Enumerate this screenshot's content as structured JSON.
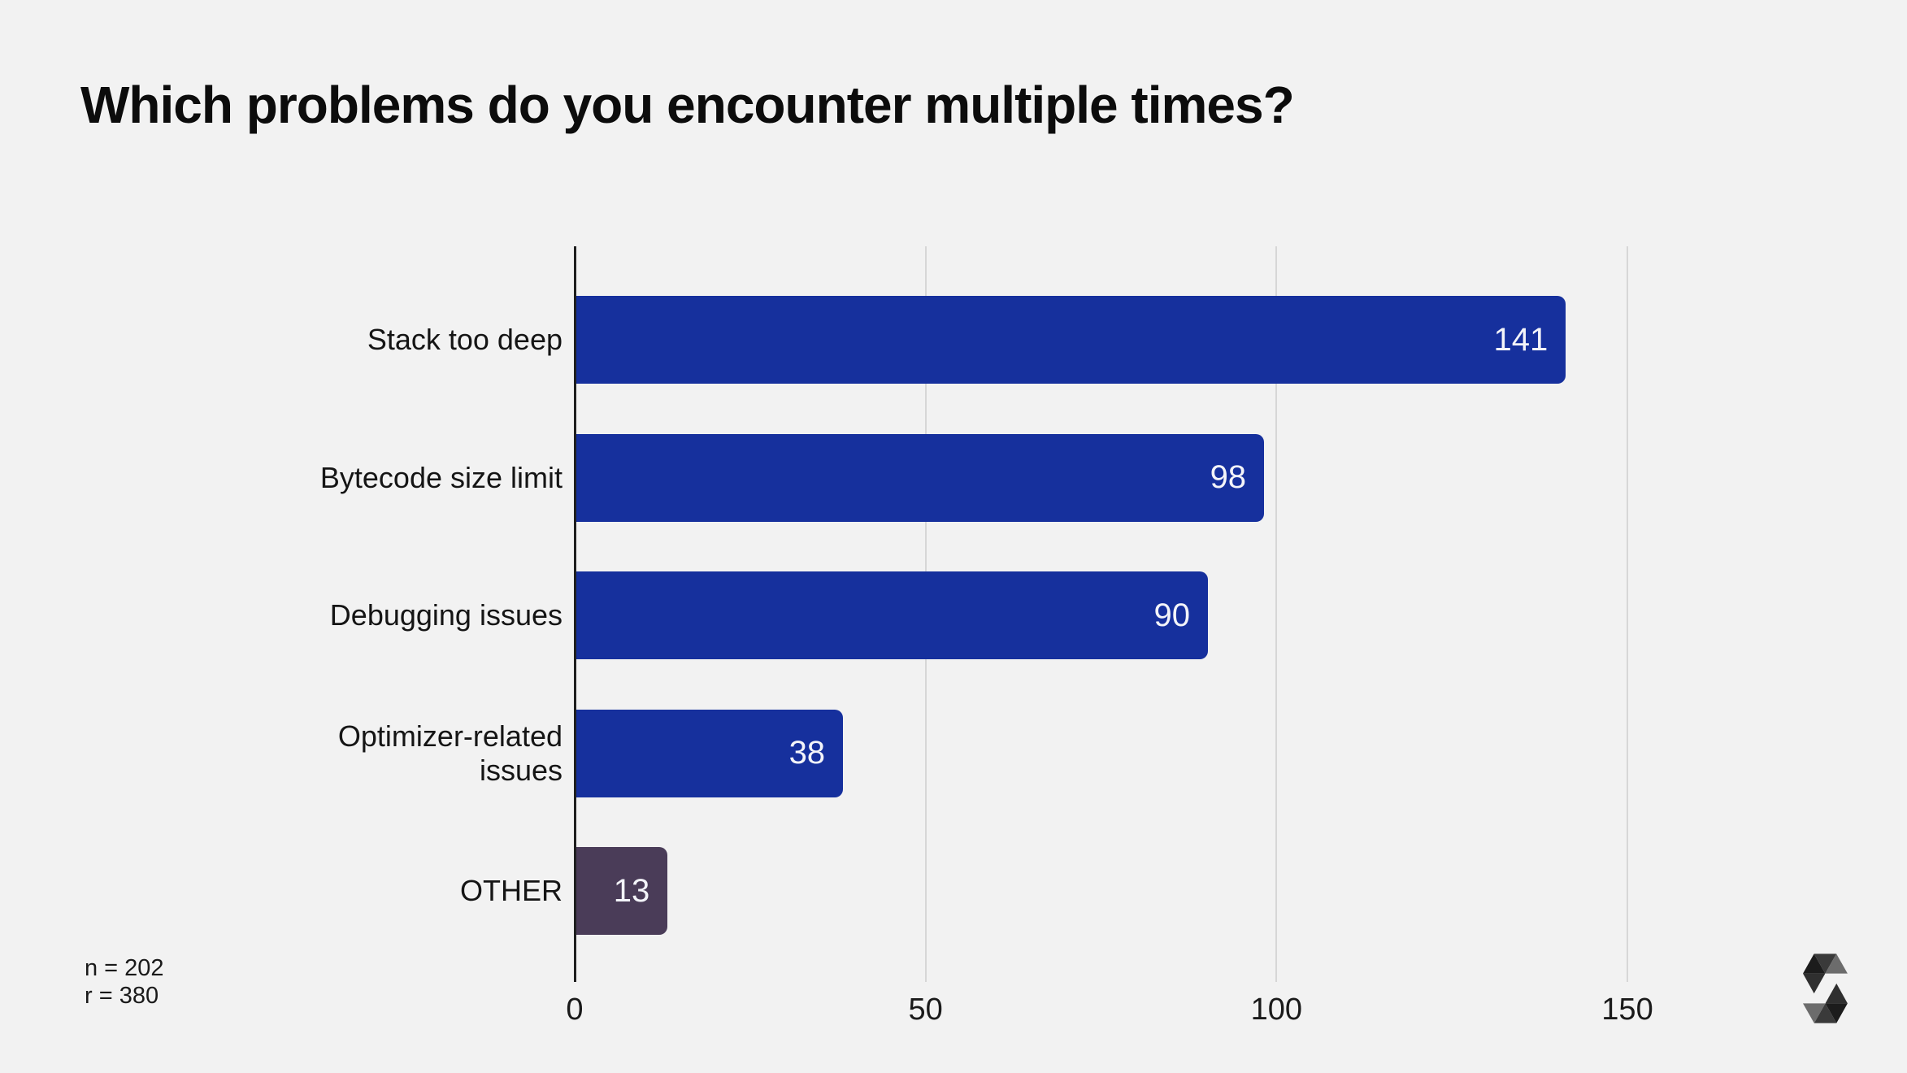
{
  "chart_data": {
    "type": "bar",
    "orientation": "horizontal",
    "title": "Which problems do you encounter multiple times?",
    "categories": [
      "Stack too deep",
      "Bytecode size limit",
      "Debugging issues",
      "Optimizer-related issues",
      "OTHER"
    ],
    "values": [
      141,
      98,
      90,
      38,
      13
    ],
    "bar_colors": [
      "#16309d",
      "#16309d",
      "#16309d",
      "#16309d",
      "#4a3c58"
    ],
    "value_labels": [
      "141",
      "98",
      "90",
      "38",
      "13"
    ],
    "value_label_color": "#f3f4f9",
    "xlabel": "",
    "ylabel": "",
    "xlim": [
      0,
      150
    ],
    "x_ticks": [
      0,
      50,
      100,
      150
    ],
    "x_tick_labels": [
      "0",
      "50",
      "100",
      "150"
    ],
    "grid": "vertical",
    "gridline_color": "#d7d7d7",
    "axis_color": "#1f1f1f",
    "background_color": "#f2f2f2",
    "annotations": [
      "n = 202",
      "r = 380"
    ]
  },
  "logo": {
    "name": "solidity-logo",
    "colors": {
      "shade_darkest": "#1c1c1c",
      "shade_dark": "#2f2f2f",
      "shade_mid": "#3a3a3a",
      "shade_light": "#6c6c6c"
    }
  }
}
